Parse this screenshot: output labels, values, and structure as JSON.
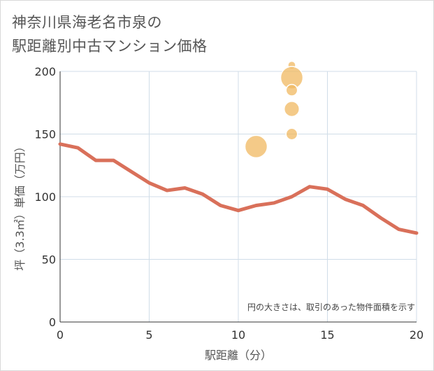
{
  "title": {
    "line1": "神奈川県海老名市泉の",
    "line2": "駅距離別中古マンション価格"
  },
  "chart_data": {
    "type": "scatter+line",
    "title": "神奈川県海老名市泉の駅距離別中古マンション価格",
    "xlabel": "駅距離（分）",
    "ylabel": "坪（3.3㎡）単価（万円）",
    "xlim": [
      0,
      20
    ],
    "ylim": [
      0,
      200
    ],
    "x_ticks": [
      0,
      5,
      10,
      15,
      20
    ],
    "y_ticks": [
      0,
      50,
      100,
      150,
      200
    ],
    "grid": true,
    "annotation": "円の大きさは、取引のあった物件面積を示す",
    "line_series": {
      "name": "average",
      "color": "#d9705a",
      "x": [
        0,
        1,
        2,
        3,
        4,
        5,
        6,
        7,
        8,
        9,
        10,
        11,
        12,
        13,
        14,
        15,
        16,
        17,
        18,
        19,
        20
      ],
      "y": [
        142,
        139,
        129,
        129,
        120,
        111,
        105,
        107,
        102,
        93,
        89,
        93,
        95,
        100,
        108,
        106,
        98,
        93,
        83,
        74,
        71
      ]
    },
    "scatter_series": {
      "name": "transactions",
      "color": "#f0b860",
      "points": [
        {
          "x": 11,
          "y": 140,
          "size": 5
        },
        {
          "x": 13,
          "y": 205,
          "size": 1
        },
        {
          "x": 13,
          "y": 195,
          "size": 5
        },
        {
          "x": 13,
          "y": 185,
          "size": 2
        },
        {
          "x": 13,
          "y": 170,
          "size": 3
        },
        {
          "x": 13,
          "y": 150,
          "size": 2
        }
      ]
    }
  }
}
